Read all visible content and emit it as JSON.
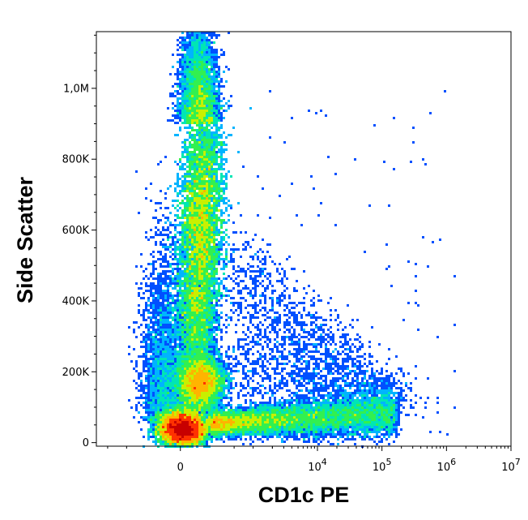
{
  "chart_data": {
    "type": "scatter",
    "style": "flow-cytometry density dot plot (pseudocolor)",
    "xlabel": "CD1c PE",
    "ylabel": "Side Scatter",
    "x_scale": "biexponential",
    "y_scale": "linear",
    "xlim": [
      -1500,
      10000000
    ],
    "ylim": [
      -10000,
      1160000
    ],
    "grid": false,
    "legend": "none",
    "x_ticks": [
      {
        "value": 0,
        "label": "0",
        "exp": ""
      },
      {
        "value": 10000,
        "label": "10",
        "exp": "4"
      },
      {
        "value": 100000,
        "label": "10",
        "exp": "5"
      },
      {
        "value": 1000000,
        "label": "10",
        "exp": "6"
      },
      {
        "value": 10000000,
        "label": "10",
        "exp": "7"
      }
    ],
    "y_ticks": [
      {
        "value": 0,
        "label": "0"
      },
      {
        "value": 200000,
        "label": "200K"
      },
      {
        "value": 400000,
        "label": "400K"
      },
      {
        "value": 600000,
        "label": "600K"
      },
      {
        "value": 800000,
        "label": "800K"
      },
      {
        "value": 1000000,
        "label": "1,0M"
      }
    ],
    "populations": [
      {
        "role": "main negative population",
        "x_center": 0,
        "y_center": 40000,
        "peak_density": "highest"
      },
      {
        "role": "granular population",
        "x_center": 1000,
        "y_center": 600000,
        "peak_density": "medium-high"
      },
      {
        "role": "intermediate population",
        "x_center": 1000,
        "y_center": 170000,
        "peak_density": "medium"
      },
      {
        "role": "CD1c positive tail",
        "x_range": [
          3000,
          500000
        ],
        "y_center": 60000,
        "peak_density": "low"
      }
    ],
    "colors": {
      "density_scale": [
        "#0000c8",
        "#0050ff",
        "#00b4ff",
        "#00e6b4",
        "#32f050",
        "#c8f000",
        "#ffb400",
        "#ff3200",
        "#c80000"
      ],
      "axis": "#000000",
      "background": "#ffffff"
    }
  }
}
